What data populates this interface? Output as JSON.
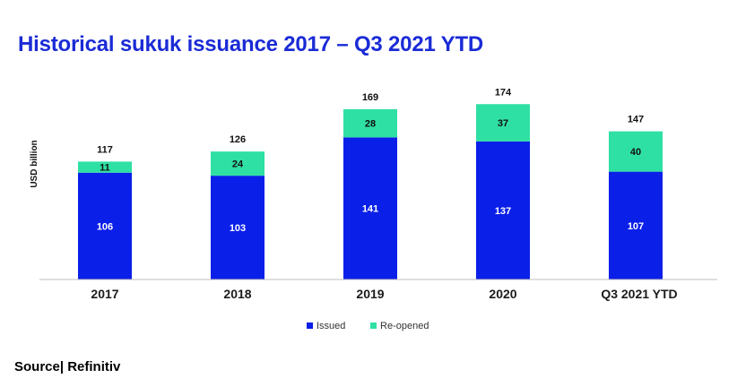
{
  "chart_data": {
    "type": "bar",
    "stacked": true,
    "title": "Historical sukuk issuance 2017 – Q3 2021 YTD",
    "ylabel": "USD billion",
    "xlabel": "",
    "categories": [
      "2017",
      "2018",
      "2019",
      "2020",
      "Q3 2021 YTD"
    ],
    "series": [
      {
        "name": "Issued",
        "values": [
          106,
          103,
          141,
          137,
          107
        ],
        "color": "#0a1fe8",
        "label_color": "#ffffff"
      },
      {
        "name": "Re-opened",
        "values": [
          11,
          24,
          28,
          37,
          40
        ],
        "color": "#2fe0a4",
        "label_color": "#111111"
      }
    ],
    "totals": [
      "117",
      "126",
      "169",
      "174",
      "147"
    ],
    "ylim": [
      0,
      200
    ],
    "grid": false,
    "legend_position": "bottom-center"
  },
  "source_text": "Source| Refinitiv"
}
